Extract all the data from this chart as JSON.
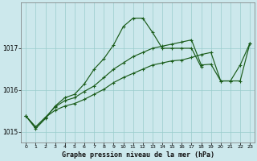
{
  "xlabel": "Graphe pression niveau de la mer (hPa)",
  "bg": "#cce8ec",
  "grid_color": "#99cccc",
  "lc": "#1a5c1a",
  "hours": [
    0,
    1,
    2,
    3,
    4,
    5,
    6,
    7,
    8,
    9,
    10,
    11,
    12,
    13,
    14,
    15,
    16,
    17,
    18,
    19,
    20,
    21,
    22,
    23
  ],
  "s1": [
    1015.38,
    1015.08,
    1015.32,
    1015.62,
    1015.82,
    1015.9,
    1016.15,
    1016.5,
    1016.75,
    1017.08,
    1017.52,
    1017.72,
    1017.72,
    1017.38,
    1017.0,
    1017.0,
    1017.0,
    1017.0,
    1016.55,
    null,
    null,
    null,
    null,
    null
  ],
  "s2": [
    1015.38,
    1015.12,
    1015.35,
    1015.6,
    1015.75,
    1015.82,
    1015.97,
    1016.1,
    1016.3,
    1016.5,
    1016.65,
    1016.8,
    1016.9,
    1017.0,
    1017.05,
    1017.1,
    1017.15,
    1017.2,
    1016.6,
    1016.62,
    1016.22,
    1016.22,
    1016.6,
    1017.12
  ],
  "s3": [
    1015.38,
    1015.12,
    1015.35,
    1015.52,
    1015.62,
    1015.68,
    1015.78,
    1015.9,
    1016.02,
    1016.18,
    1016.3,
    1016.4,
    1016.5,
    1016.6,
    1016.65,
    1016.7,
    1016.72,
    1016.78,
    1016.85,
    1016.9,
    1016.22,
    1016.22,
    1016.22,
    1017.12
  ],
  "s1_x": [
    0,
    1,
    2,
    3,
    4,
    5,
    6,
    7,
    8,
    9,
    10,
    11,
    12,
    13,
    14,
    15,
    16,
    17,
    18
  ],
  "s1_y": [
    1015.38,
    1015.08,
    1015.32,
    1015.62,
    1015.82,
    1015.9,
    1016.15,
    1016.5,
    1016.75,
    1017.08,
    1017.52,
    1017.72,
    1017.72,
    1017.38,
    1017.0,
    1017.0,
    1017.0,
    1017.0,
    1016.55
  ],
  "ylim": [
    1014.75,
    1018.1
  ],
  "yticks": [
    1015,
    1016,
    1017
  ],
  "xticks": [
    0,
    1,
    2,
    3,
    4,
    5,
    6,
    7,
    8,
    9,
    10,
    11,
    12,
    13,
    14,
    15,
    16,
    17,
    18,
    19,
    20,
    21,
    22,
    23
  ],
  "figsize": [
    3.2,
    2.0
  ],
  "dpi": 100
}
